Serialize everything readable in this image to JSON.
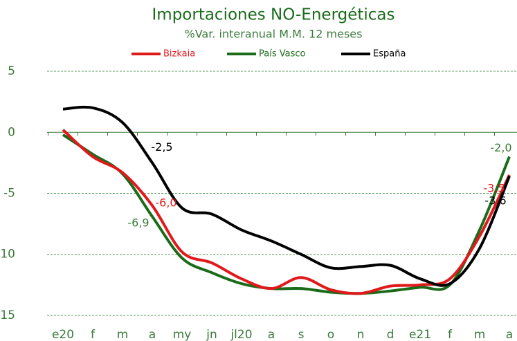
{
  "chart_data": {
    "type": "line",
    "title": "Importaciones NO-Energéticas",
    "subtitle": "%Var. interanual M.M. 12 meses",
    "categories": [
      "e20",
      "f",
      "m",
      "a",
      "my",
      "jn",
      "jl20",
      "a",
      "s",
      "o",
      "n",
      "d",
      "e21",
      "f",
      "m",
      "a"
    ],
    "series": [
      {
        "name": "Bizkaia",
        "color": "#e0191b",
        "values": [
          0.2,
          -2.0,
          -3.3,
          -6.0,
          -9.8,
          -10.7,
          -12.0,
          -12.8,
          -11.9,
          -12.9,
          -13.2,
          -12.6,
          -12.5,
          -12.0,
          -8.5,
          -3.5
        ],
        "value_labels": [
          null,
          null,
          null,
          "-6,0",
          null,
          null,
          null,
          null,
          null,
          null,
          null,
          null,
          null,
          null,
          null,
          "-3,5"
        ]
      },
      {
        "name": "País Vasco",
        "color": "#1a6b1a",
        "values": [
          -0.2,
          -1.8,
          -3.4,
          -6.9,
          -10.3,
          -11.5,
          -12.4,
          -12.8,
          -12.8,
          -13.1,
          -13.2,
          -13.0,
          -12.7,
          -12.5,
          -8.0,
          -2.0
        ],
        "value_labels": [
          null,
          null,
          null,
          "-6,9",
          null,
          null,
          null,
          null,
          null,
          null,
          null,
          null,
          null,
          null,
          null,
          "-2,0"
        ]
      },
      {
        "name": "España",
        "color": "#000000",
        "values": [
          1.9,
          2.0,
          0.8,
          -2.5,
          -6.2,
          -6.7,
          -8.0,
          -8.9,
          -10.0,
          -11.1,
          -11.0,
          -10.9,
          -12.0,
          -12.4,
          -9.5,
          -3.6
        ],
        "value_labels": [
          null,
          null,
          null,
          "-2,5",
          null,
          null,
          null,
          null,
          null,
          null,
          null,
          null,
          null,
          null,
          null,
          "-3,6"
        ]
      }
    ],
    "ylim": [
      -15.5,
      5.5
    ],
    "yticks": [
      5,
      0,
      -5,
      -10,
      -15
    ],
    "grid": true,
    "legend": "top"
  }
}
